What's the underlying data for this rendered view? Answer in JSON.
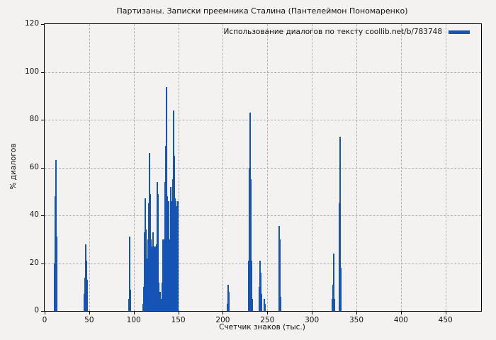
{
  "title": "Партизаны. Записки преемника Сталина (Пантелеймон Пономаренко)",
  "legend": {
    "label": "Использование диалогов по тексту coollib.net/b/783748",
    "swatch_color": "#1553b4"
  },
  "colors": {
    "bar": "#1553b4",
    "background": "#f3f2f0",
    "grid": "#b0b0b0",
    "frame": "#000000"
  },
  "axes": {
    "x": {
      "label": "Счетчик знаков (тыс.)"
    },
    "y": {
      "label": "% диалогов"
    }
  },
  "chart_data": {
    "type": "bar",
    "title": "Партизаны. Записки преемника Сталина (Пантелеймон Пономаренко)",
    "series_name": "Использование диалогов по тексту coollib.net/b/783748",
    "xlabel": "Счетчик знаков (тыс.)",
    "ylabel": "% диалогов",
    "xlim": [
      0,
      490
    ],
    "ylim": [
      0,
      120
    ],
    "x_ticks": [
      0,
      50,
      100,
      150,
      200,
      250,
      300,
      350,
      400,
      450
    ],
    "y_ticks": [
      0,
      20,
      40,
      60,
      80,
      100,
      120
    ],
    "grid": "dashed",
    "legend_position": "top-right-inside",
    "points": [
      [
        10.8,
        4
      ],
      [
        11.5,
        20
      ],
      [
        12.1,
        48
      ],
      [
        12.7,
        63
      ],
      [
        13.3,
        31
      ],
      [
        13.9,
        19
      ],
      [
        44.9,
        7
      ],
      [
        45.6,
        14
      ],
      [
        46.2,
        28
      ],
      [
        46.8,
        21
      ],
      [
        47.4,
        13
      ],
      [
        48,
        4
      ],
      [
        94.6,
        5
      ],
      [
        95.2,
        24
      ],
      [
        95.8,
        31
      ],
      [
        96.4,
        9
      ],
      [
        110.6,
        3
      ],
      [
        111.2,
        10
      ],
      [
        111.8,
        22
      ],
      [
        112.4,
        33
      ],
      [
        113,
        47
      ],
      [
        113.6,
        34
      ],
      [
        114.2,
        22
      ],
      [
        114.8,
        12
      ],
      [
        115.6,
        10
      ],
      [
        116.2,
        30
      ],
      [
        116.8,
        45
      ],
      [
        117.4,
        66
      ],
      [
        118,
        54
      ],
      [
        118.6,
        49
      ],
      [
        119.2,
        30
      ],
      [
        119.8,
        22
      ],
      [
        120.4,
        12
      ],
      [
        121.2,
        27
      ],
      [
        121.8,
        33
      ],
      [
        122.4,
        27
      ],
      [
        123,
        25
      ],
      [
        123.8,
        12
      ],
      [
        124.4,
        27
      ],
      [
        125,
        12
      ],
      [
        125.8,
        28
      ],
      [
        126.4,
        54
      ],
      [
        127,
        49
      ],
      [
        127.6,
        24
      ],
      [
        128.2,
        12
      ],
      [
        129,
        5
      ],
      [
        129.8,
        8
      ],
      [
        131.4,
        5
      ],
      [
        132,
        12
      ],
      [
        132.6,
        18
      ],
      [
        133.2,
        30
      ],
      [
        133.8,
        18
      ],
      [
        134.4,
        30
      ],
      [
        135.2,
        54
      ],
      [
        135.8,
        69
      ],
      [
        136.6,
        93.5
      ],
      [
        137.4,
        46
      ],
      [
        138,
        48
      ],
      [
        138.6,
        44
      ],
      [
        139.2,
        46
      ],
      [
        139.8,
        30
      ],
      [
        140.4,
        25
      ],
      [
        141,
        28
      ],
      [
        141.8,
        52
      ],
      [
        142.4,
        46
      ],
      [
        143,
        40
      ],
      [
        143.8,
        55
      ],
      [
        144.6,
        84
      ],
      [
        145.4,
        65
      ],
      [
        146,
        46
      ],
      [
        146.6,
        47
      ],
      [
        147.2,
        46
      ],
      [
        147.8,
        44
      ],
      [
        148.4,
        40
      ],
      [
        149,
        38
      ],
      [
        149.6,
        46
      ],
      [
        205.6,
        3
      ],
      [
        206.2,
        11
      ],
      [
        206.9,
        8
      ],
      [
        229.3,
        21
      ],
      [
        230,
        60
      ],
      [
        230.7,
        83
      ],
      [
        231.4,
        55
      ],
      [
        232,
        21
      ],
      [
        232.7,
        5
      ],
      [
        241,
        10
      ],
      [
        241.7,
        21
      ],
      [
        242.4,
        16
      ],
      [
        243.1,
        7
      ],
      [
        246.5,
        5
      ],
      [
        247.2,
        3
      ],
      [
        263.4,
        35.5
      ],
      [
        264.1,
        30
      ],
      [
        264.8,
        6
      ],
      [
        322.8,
        5
      ],
      [
        323.5,
        11
      ],
      [
        324.2,
        24
      ],
      [
        324.9,
        12
      ],
      [
        325.6,
        5
      ],
      [
        330.6,
        18
      ],
      [
        331.3,
        45
      ],
      [
        332,
        73
      ],
      [
        332.7,
        18
      ]
    ]
  }
}
